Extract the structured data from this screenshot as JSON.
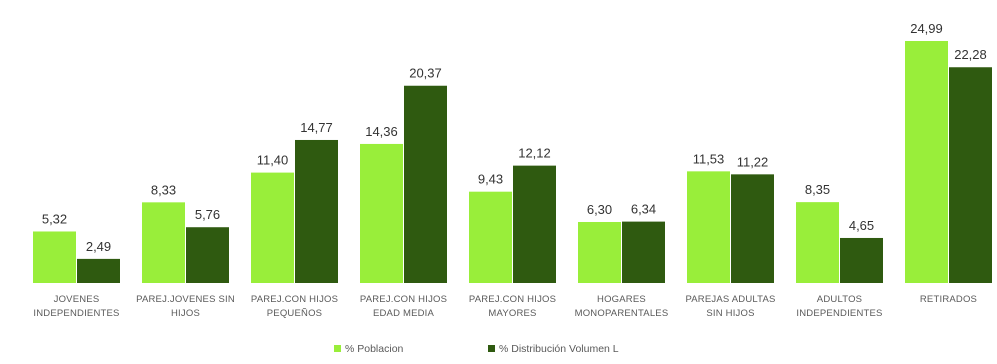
{
  "chart_data": {
    "type": "bar",
    "categories": [
      [
        "JOVENES",
        "INDEPENDIENTES"
      ],
      [
        "PAREJ.JOVENES SIN",
        "HIJOS"
      ],
      [
        "PAREJ.CON HIJOS",
        "PEQUEÑOS"
      ],
      [
        "PAREJ.CON HIJOS",
        "EDAD MEDIA"
      ],
      [
        "PAREJ.CON HIJOS",
        "MAYORES"
      ],
      [
        "HOGARES",
        "MONOPARENTALES"
      ],
      [
        "PAREJAS ADULTAS",
        "SIN HIJOS"
      ],
      [
        "ADULTOS",
        "INDEPENDIENTES"
      ],
      [
        "RETIRADOS"
      ]
    ],
    "series": [
      {
        "name": "% Poblacion",
        "color": "#99ee3a",
        "values": [
          5.32,
          8.33,
          11.4,
          14.36,
          9.43,
          6.3,
          11.53,
          8.35,
          24.99
        ],
        "labels": [
          "5,32",
          "8,33",
          "11,40",
          "14,36",
          "9,43",
          "6,30",
          "11,53",
          "8,35",
          "24,99"
        ]
      },
      {
        "name": "% Distribución Volumen L",
        "color": "#2f5a10",
        "values": [
          2.49,
          5.76,
          14.77,
          20.37,
          12.12,
          6.34,
          11.22,
          4.65,
          22.28
        ],
        "labels": [
          "2,49",
          "5,76",
          "14,77",
          "20,37",
          "12,12",
          "6,34",
          "11,22",
          "4,65",
          "22,28"
        ]
      }
    ],
    "ylim": [
      0,
      25.5
    ],
    "grid": false,
    "legend_position": "bottom"
  }
}
